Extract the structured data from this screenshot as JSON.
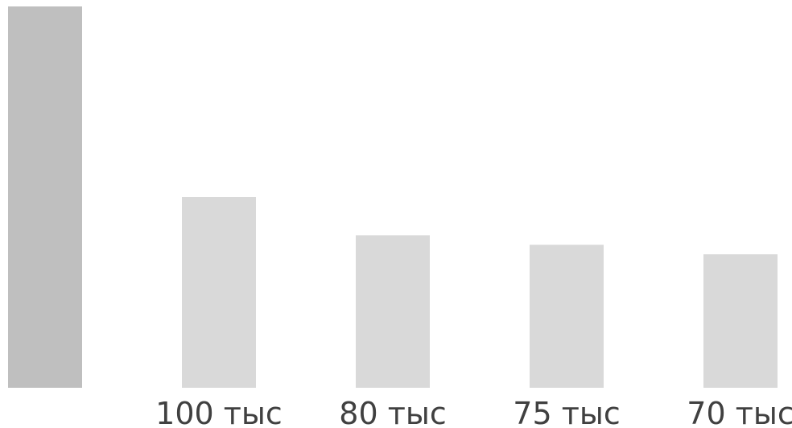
{
  "chart_data": {
    "type": "bar",
    "categories": [
      "",
      "100 тыс",
      "80 тыс",
      "75 тыс",
      "70 тыс"
    ],
    "values": [
      200,
      100,
      80,
      75,
      70
    ],
    "bar_colors": [
      "#bfbfbf",
      "#d9d9d9",
      "#d9d9d9",
      "#d9d9d9",
      "#d9d9d9"
    ],
    "title": "",
    "xlabel": "",
    "ylabel": "",
    "grid": false,
    "legend": "none"
  }
}
